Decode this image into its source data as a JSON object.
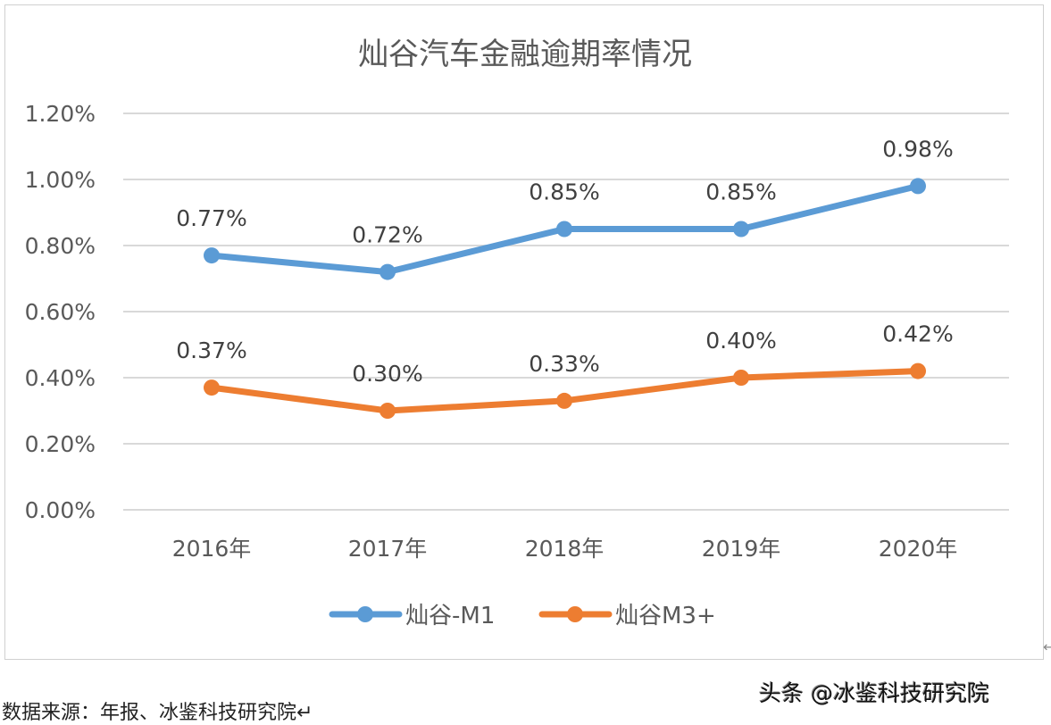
{
  "chart_data": {
    "type": "line",
    "title": "灿谷汽车金融逾期率情况",
    "categories": [
      "2016年",
      "2017年",
      "2018年",
      "2019年",
      "2020年"
    ],
    "series": [
      {
        "name": "灿谷-M1",
        "values": [
          0.77,
          0.72,
          0.85,
          0.85,
          0.98
        ],
        "labels": [
          "0.77%",
          "0.72%",
          "0.85%",
          "0.85%",
          "0.98%"
        ],
        "color": "#5B9BD5"
      },
      {
        "name": "灿谷M3+",
        "values": [
          0.37,
          0.3,
          0.33,
          0.4,
          0.42
        ],
        "labels": [
          "0.37%",
          "0.30%",
          "0.33%",
          "0.40%",
          "0.42%"
        ],
        "color": "#ED7D31"
      }
    ],
    "yticks": [
      "0.00%",
      "0.20%",
      "0.40%",
      "0.60%",
      "0.80%",
      "1.00%",
      "1.20%"
    ],
    "ylim": [
      0,
      1.2
    ],
    "grid": true,
    "legend": "bottom"
  },
  "footer": {
    "source": "数据来源：年报、冰鉴科技研究院↵",
    "watermark": "头条 @冰鉴科技研究院",
    "return_mark": "↵"
  }
}
